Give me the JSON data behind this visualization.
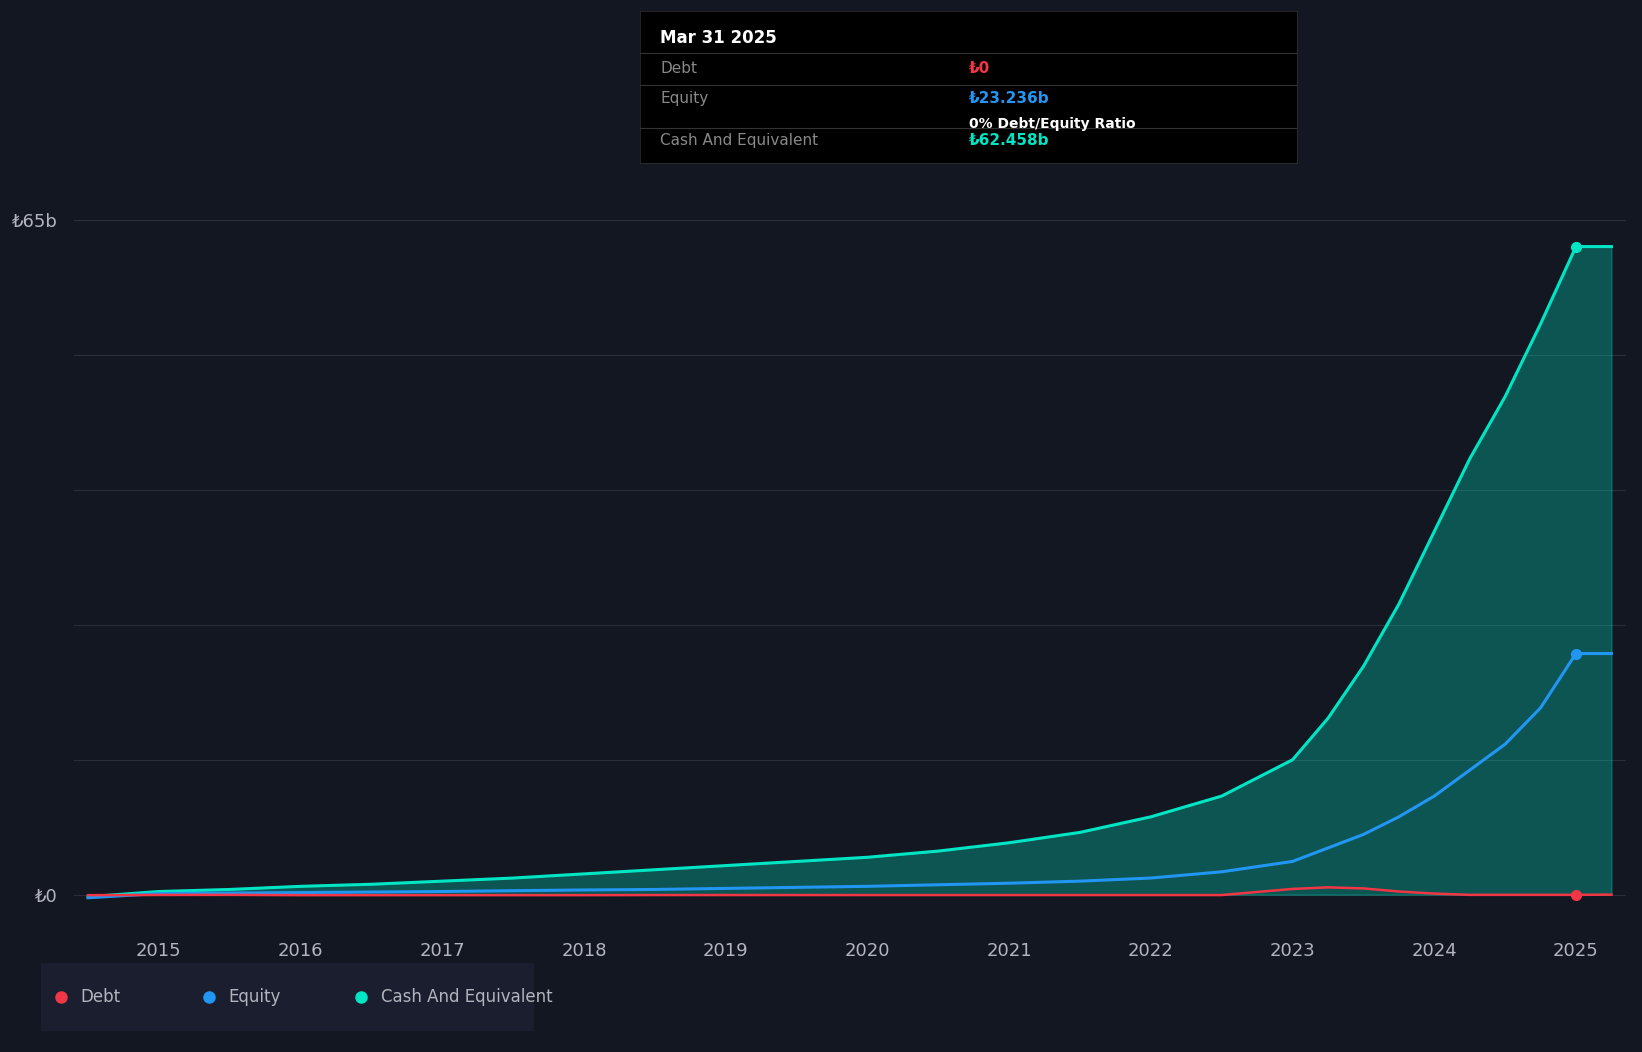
{
  "background_color": "#131722",
  "plot_bg_color": "#131722",
  "grid_color": "#2a2e39",
  "text_color": "#b2b5be",
  "years": [
    2014.5,
    2015.0,
    2015.5,
    2016.0,
    2016.5,
    2017.0,
    2017.5,
    2018.0,
    2018.5,
    2019.0,
    2019.5,
    2020.0,
    2020.5,
    2021.0,
    2021.5,
    2022.0,
    2022.5,
    2023.0,
    2023.25,
    2023.5,
    2023.75,
    2024.0,
    2024.25,
    2024.5,
    2024.75,
    2025.0,
    2025.25
  ],
  "debt": [
    -0.05,
    -0.03,
    -0.02,
    -0.05,
    -0.05,
    -0.05,
    -0.05,
    -0.05,
    -0.04,
    -0.04,
    -0.04,
    -0.04,
    -0.04,
    -0.04,
    -0.04,
    -0.04,
    -0.04,
    0.55,
    0.7,
    0.6,
    0.3,
    0.1,
    -0.02,
    -0.02,
    -0.02,
    -0.02,
    0.0
  ],
  "equity": [
    -0.3,
    0.1,
    0.15,
    0.2,
    0.25,
    0.3,
    0.38,
    0.45,
    0.5,
    0.6,
    0.7,
    0.8,
    0.95,
    1.1,
    1.3,
    1.6,
    2.2,
    3.2,
    4.5,
    5.8,
    7.5,
    9.5,
    12.0,
    14.5,
    18.0,
    23.236,
    23.236
  ],
  "cash": [
    -0.2,
    0.3,
    0.5,
    0.8,
    1.0,
    1.3,
    1.6,
    2.0,
    2.4,
    2.8,
    3.2,
    3.6,
    4.2,
    5.0,
    6.0,
    7.5,
    9.5,
    13.0,
    17.0,
    22.0,
    28.0,
    35.0,
    42.0,
    48.0,
    55.0,
    62.458,
    62.458
  ],
  "debt_color": "#f23645",
  "equity_color": "#2196f3",
  "cash_color": "#00e5c4",
  "cash_fill_color": "#00e5c4",
  "ylim_min": -3,
  "ylim_max": 70,
  "ytick_labels": [
    "₺0",
    "₺65b"
  ],
  "ytick_values": [
    0,
    65
  ],
  "grid_lines_y": [
    0,
    13,
    26,
    39,
    52,
    65
  ],
  "xlabel_years": [
    2015,
    2016,
    2017,
    2018,
    2019,
    2020,
    2021,
    2022,
    2023,
    2024,
    2025
  ],
  "tooltip_title": "Mar 31 2025",
  "tooltip_debt_label": "Debt",
  "tooltip_debt_value": "₺0",
  "tooltip_equity_label": "Equity",
  "tooltip_equity_value": "₺23.236b",
  "tooltip_ratio_text": "0% Debt/Equity Ratio",
  "tooltip_cash_label": "Cash And Equivalent",
  "tooltip_cash_value": "₺62.458b",
  "legend_debt": "Debt",
  "legend_equity": "Equity",
  "legend_cash": "Cash And Equivalent",
  "legend_bg": "#1a1e2e"
}
